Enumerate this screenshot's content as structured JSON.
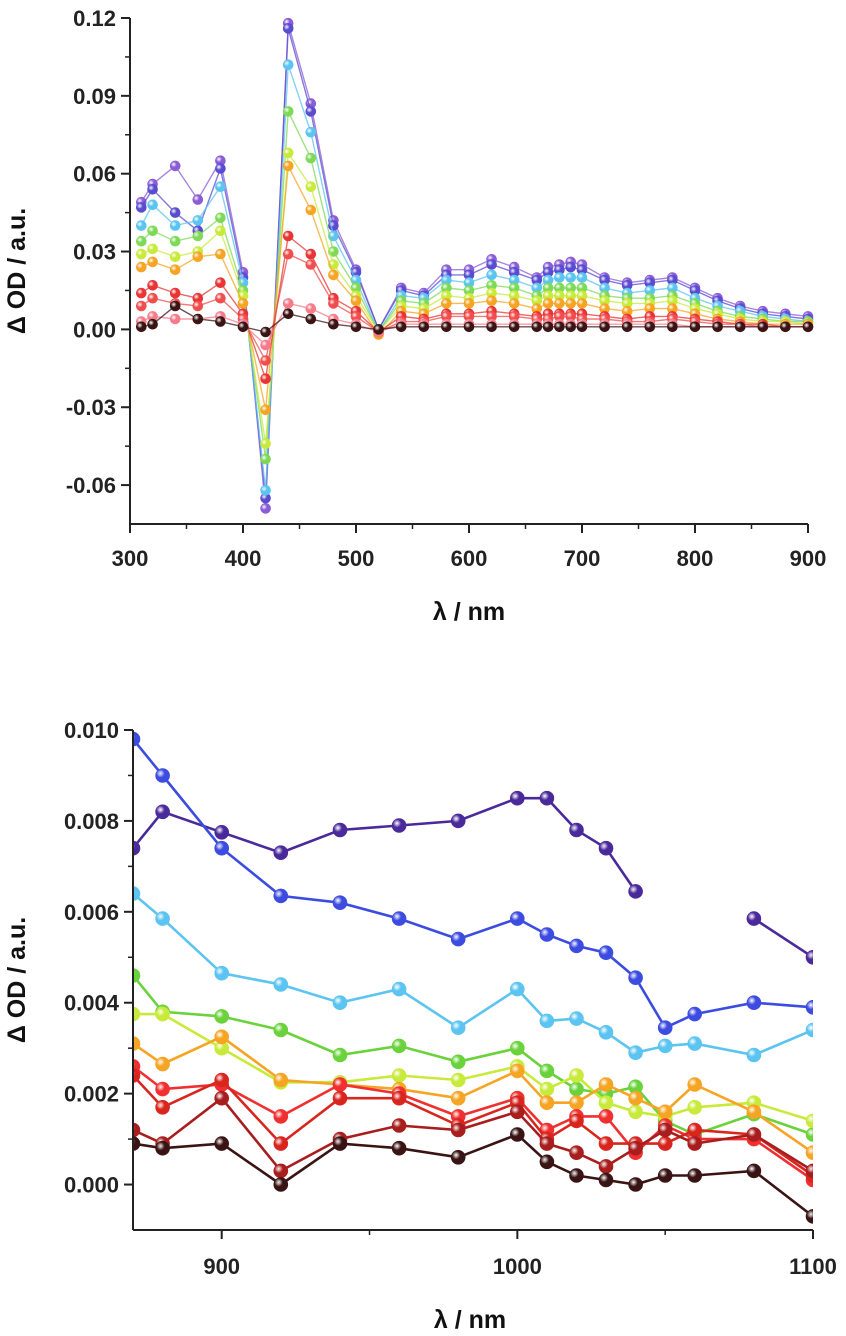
{
  "chart_data": [
    {
      "type": "line",
      "xlabel": "λ / nm",
      "ylabel": "Δ OD / a.u.",
      "xlim": [
        300,
        900
      ],
      "ylim": [
        -0.075,
        0.12
      ],
      "xticks": [
        "300",
        "400",
        "500",
        "600",
        "700",
        "800",
        "900"
      ],
      "yticks": [
        "-0.06",
        "-0.03",
        "0.00",
        "0.03",
        "0.06",
        "0.09",
        "0.12"
      ],
      "grid": false,
      "legend": "none",
      "x": [
        310,
        320,
        340,
        360,
        380,
        400,
        420,
        440,
        460,
        480,
        500,
        520,
        540,
        560,
        580,
        600,
        620,
        640,
        660,
        670,
        680,
        690,
        700,
        720,
        740,
        760,
        780,
        800,
        820,
        840,
        860,
        880,
        900
      ],
      "series": [
        {
          "color": "#8a5cd6",
          "values": [
            0.049,
            0.056,
            0.063,
            0.05,
            0.065,
            0.022,
            -0.069,
            0.118,
            0.087,
            0.042,
            0.023,
            0.0,
            0.016,
            0.014,
            0.023,
            0.023,
            0.027,
            0.024,
            0.02,
            0.024,
            0.025,
            0.026,
            0.025,
            0.02,
            0.018,
            0.019,
            0.02,
            0.016,
            0.012,
            0.009,
            0.007,
            0.006,
            0.005
          ]
        },
        {
          "color": "#5a4cd0",
          "values": [
            0.047,
            0.054,
            0.045,
            0.038,
            0.062,
            0.02,
            -0.065,
            0.116,
            0.084,
            0.04,
            0.022,
            0.0,
            0.015,
            0.013,
            0.021,
            0.021,
            0.025,
            0.022,
            0.019,
            0.022,
            0.023,
            0.024,
            0.023,
            0.019,
            0.017,
            0.018,
            0.019,
            0.015,
            0.011,
            0.008,
            0.006,
            0.005,
            0.004
          ]
        },
        {
          "color": "#5bc4f0",
          "values": [
            0.04,
            0.048,
            0.04,
            0.042,
            0.055,
            0.018,
            -0.062,
            0.102,
            0.076,
            0.036,
            0.019,
            -0.001,
            0.013,
            0.012,
            0.019,
            0.018,
            0.021,
            0.019,
            0.016,
            0.019,
            0.02,
            0.02,
            0.02,
            0.016,
            0.014,
            0.015,
            0.016,
            0.012,
            0.009,
            0.007,
            0.005,
            0.004,
            0.003
          ]
        },
        {
          "color": "#7ed957",
          "values": [
            0.034,
            0.038,
            0.034,
            0.036,
            0.043,
            0.015,
            -0.05,
            0.084,
            0.066,
            0.03,
            0.016,
            -0.001,
            0.011,
            0.01,
            0.016,
            0.015,
            0.017,
            0.016,
            0.013,
            0.016,
            0.016,
            0.016,
            0.016,
            0.013,
            0.012,
            0.012,
            0.013,
            0.01,
            0.007,
            0.005,
            0.004,
            0.003,
            0.003
          ]
        },
        {
          "color": "#c8ea3a",
          "values": [
            0.029,
            0.031,
            0.028,
            0.03,
            0.038,
            0.013,
            -0.044,
            0.068,
            0.055,
            0.025,
            0.013,
            -0.001,
            0.009,
            0.008,
            0.013,
            0.012,
            0.014,
            0.013,
            0.011,
            0.013,
            0.013,
            0.013,
            0.013,
            0.011,
            0.01,
            0.01,
            0.011,
            0.008,
            0.006,
            0.004,
            0.003,
            0.003,
            0.002
          ]
        },
        {
          "color": "#f6a423",
          "values": [
            0.024,
            0.026,
            0.023,
            0.028,
            0.029,
            0.01,
            -0.031,
            0.063,
            0.046,
            0.021,
            0.011,
            -0.002,
            0.007,
            0.006,
            0.01,
            0.01,
            0.011,
            0.01,
            0.008,
            0.01,
            0.01,
            0.01,
            0.01,
            0.008,
            0.007,
            0.008,
            0.008,
            0.006,
            0.004,
            0.003,
            0.002,
            0.002,
            0.002
          ]
        },
        {
          "color": "#e83434",
          "values": [
            0.014,
            0.017,
            0.014,
            0.012,
            0.018,
            0.006,
            -0.019,
            0.036,
            0.029,
            0.012,
            0.007,
            -0.001,
            0.005,
            0.004,
            0.006,
            0.006,
            0.007,
            0.006,
            0.005,
            0.006,
            0.006,
            0.006,
            0.006,
            0.005,
            0.004,
            0.005,
            0.005,
            0.004,
            0.003,
            0.002,
            0.002,
            0.001,
            0.001
          ]
        },
        {
          "color": "#f04e4e",
          "values": [
            0.009,
            0.012,
            0.01,
            0.009,
            0.012,
            0.004,
            -0.012,
            0.029,
            0.025,
            0.01,
            0.005,
            -0.001,
            0.003,
            0.003,
            0.005,
            0.005,
            0.005,
            0.005,
            0.004,
            0.004,
            0.005,
            0.005,
            0.004,
            0.004,
            0.003,
            0.003,
            0.004,
            0.003,
            0.002,
            0.002,
            0.001,
            0.001,
            0.001
          ]
        },
        {
          "color": "#f77a8a",
          "values": [
            0.003,
            0.005,
            0.004,
            0.004,
            0.005,
            0.002,
            -0.006,
            0.01,
            0.008,
            0.004,
            0.002,
            -0.001,
            0.002,
            0.002,
            0.002,
            0.002,
            0.002,
            0.002,
            0.002,
            0.002,
            0.002,
            0.002,
            0.002,
            0.002,
            0.002,
            0.002,
            0.002,
            0.001,
            0.001,
            0.001,
            0.001,
            0.001,
            0.001
          ]
        },
        {
          "color": "#3a1414",
          "values": [
            0.001,
            0.002,
            0.009,
            0.004,
            0.003,
            0.001,
            -0.001,
            0.006,
            0.004,
            0.002,
            0.001,
            0.0,
            0.001,
            0.001,
            0.001,
            0.001,
            0.001,
            0.001,
            0.001,
            0.001,
            0.001,
            0.001,
            0.001,
            0.001,
            0.001,
            0.001,
            0.001,
            0.001,
            0.001,
            0.001,
            0.001,
            0.001,
            0.001
          ]
        }
      ]
    },
    {
      "type": "line",
      "xlabel": "λ / nm",
      "ylabel": "Δ OD / a.u.",
      "xlim": [
        870,
        1100
      ],
      "ylim": [
        -0.001,
        0.01
      ],
      "xticks": [
        "900",
        "1000",
        "1100"
      ],
      "yticks": [
        "0.000",
        "0.002",
        "0.004",
        "0.006",
        "0.008",
        "0.010"
      ],
      "grid": false,
      "legend": "none",
      "x": [
        870,
        880,
        900,
        920,
        940,
        960,
        980,
        1000,
        1010,
        1020,
        1030,
        1040,
        1050,
        1060,
        1080,
        1100
      ],
      "series": [
        {
          "color": "#4a2a9a",
          "values": [
            0.0074,
            0.0082,
            0.00775,
            0.0073,
            0.0078,
            0.0079,
            0.008,
            0.0085,
            0.0085,
            0.0078,
            0.0074,
            0.00645,
            null,
            null,
            0.00585,
            0.005
          ]
        },
        {
          "color": "#3d4ce0",
          "values": [
            0.0098,
            0.009,
            0.0074,
            0.00635,
            0.0062,
            0.00585,
            0.0054,
            0.00585,
            0.0055,
            0.00525,
            0.0051,
            0.00455,
            0.00345,
            0.00375,
            0.004,
            0.0039
          ]
        },
        {
          "color": "#5bc4f0",
          "values": [
            0.0064,
            0.00585,
            0.00465,
            0.0044,
            0.004,
            0.0043,
            0.00345,
            0.0043,
            0.0036,
            0.00365,
            0.00335,
            0.0029,
            0.00305,
            0.0031,
            0.00285,
            0.0034
          ]
        },
        {
          "color": "#6ad23a",
          "values": [
            0.0046,
            0.0038,
            0.0037,
            0.0034,
            0.00285,
            0.00305,
            0.0027,
            0.003,
            0.0025,
            0.0021,
            0.002,
            0.00215,
            0.0014,
            0.0011,
            0.00155,
            0.0011
          ]
        },
        {
          "color": "#c8ea3a",
          "values": [
            0.00375,
            0.00375,
            0.003,
            0.00225,
            0.00225,
            0.0024,
            0.0023,
            0.0026,
            0.0021,
            0.0024,
            0.0018,
            0.0016,
            0.0015,
            0.0017,
            0.0018,
            0.0014
          ]
        },
        {
          "color": "#f6a423",
          "values": [
            0.0031,
            0.00265,
            0.00325,
            0.0023,
            0.0022,
            0.0021,
            0.0019,
            0.0025,
            0.0018,
            0.0018,
            0.0022,
            0.0019,
            0.0016,
            0.0022,
            0.0016,
            0.0007
          ]
        },
        {
          "color": "#f03030",
          "values": [
            0.0026,
            0.0021,
            0.0022,
            0.0015,
            0.0022,
            0.002,
            0.0015,
            0.0019,
            0.0012,
            0.0015,
            0.0015,
            0.0007,
            0.0013,
            0.001,
            0.001,
            0.0001
          ]
        },
        {
          "color": "#d8261f",
          "values": [
            0.0024,
            0.0017,
            0.0023,
            0.0009,
            0.0019,
            0.0019,
            0.0013,
            0.0018,
            0.001,
            0.0014,
            0.0009,
            0.0009,
            0.0009,
            0.0012,
            0.0011,
            0.0002
          ]
        },
        {
          "color": "#a81e1e",
          "values": [
            0.0012,
            0.0009,
            0.0019,
            0.0003,
            0.001,
            0.0013,
            0.0012,
            0.0016,
            0.0009,
            0.0007,
            0.0004,
            0.0008,
            0.0012,
            0.0009,
            0.0011,
            0.0003
          ]
        },
        {
          "color": "#3a1414",
          "values": [
            0.0009,
            0.0008,
            0.0009,
            0.0,
            0.0009,
            0.0008,
            0.0006,
            0.0011,
            0.0005,
            0.0002,
            0.0001,
            0.0,
            0.0002,
            0.0002,
            0.0003,
            -0.0007
          ]
        }
      ]
    }
  ]
}
